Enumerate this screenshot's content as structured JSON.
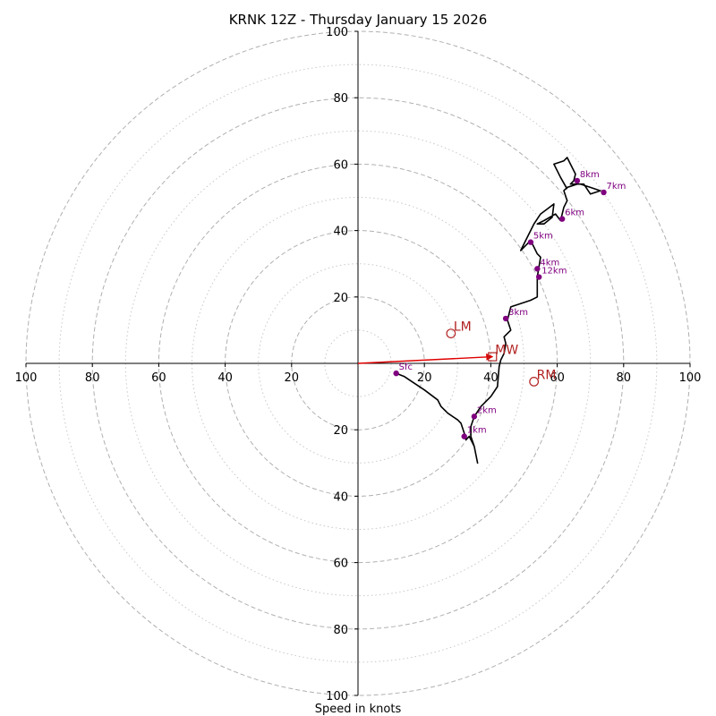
{
  "chart_data": {
    "type": "hodograph",
    "title": "KRNK 12Z - Thursday January 15 2026",
    "xlabel": "Speed in knots",
    "unit": "knots",
    "axis_range": [
      -100,
      100
    ],
    "rings_major": [
      20,
      40,
      60,
      80,
      100
    ],
    "rings_minor": [
      10,
      30,
      50,
      70,
      90
    ],
    "tick_labels_x": [
      "100",
      "80",
      "60",
      "40",
      "20",
      "20",
      "40",
      "60",
      "80",
      "100"
    ],
    "tick_values_x": [
      -100,
      -80,
      -60,
      -40,
      -20,
      20,
      40,
      60,
      80,
      100
    ],
    "tick_labels_y": [
      "100",
      "80",
      "60",
      "40",
      "20",
      "20",
      "40",
      "60",
      "80",
      "100"
    ],
    "tick_values_y": [
      100,
      80,
      60,
      40,
      20,
      -20,
      -40,
      -60,
      -80,
      -100
    ],
    "trace": [
      [
        11.5,
        -3
      ],
      [
        14,
        -4
      ],
      [
        17,
        -6
      ],
      [
        20,
        -8
      ],
      [
        24,
        -11
      ],
      [
        25,
        -13
      ],
      [
        27,
        -15
      ],
      [
        30,
        -17
      ],
      [
        31,
        -18
      ],
      [
        32,
        -21
      ],
      [
        32.5,
        -23
      ],
      [
        33.5,
        -22
      ],
      [
        35,
        -25
      ],
      [
        36,
        -30
      ],
      [
        35,
        -25
      ],
      [
        34,
        -22
      ],
      [
        34,
        -19
      ],
      [
        35,
        -16
      ],
      [
        37,
        -13
      ],
      [
        40,
        -10
      ],
      [
        42,
        -7
      ],
      [
        42.5,
        -1
      ],
      [
        43,
        1
      ],
      [
        44,
        3
      ],
      [
        44.5,
        6
      ],
      [
        44,
        8
      ],
      [
        46,
        10
      ],
      [
        45,
        13
      ],
      [
        46,
        17
      ],
      [
        52,
        19
      ],
      [
        54,
        20
      ],
      [
        54,
        26
      ],
      [
        54.5,
        29
      ],
      [
        55,
        32
      ],
      [
        54,
        33
      ],
      [
        53,
        35
      ],
      [
        52,
        37
      ],
      [
        49,
        34
      ],
      [
        51,
        38
      ],
      [
        53,
        42
      ],
      [
        55,
        45
      ],
      [
        57,
        46.5
      ],
      [
        59,
        48
      ],
      [
        58.5,
        44
      ],
      [
        56,
        42
      ],
      [
        54,
        42
      ],
      [
        56,
        43
      ],
      [
        59.5,
        45
      ],
      [
        61,
        43
      ],
      [
        62,
        47
      ],
      [
        63,
        49
      ],
      [
        62,
        52
      ],
      [
        63,
        53
      ],
      [
        66,
        54
      ],
      [
        68,
        54
      ],
      [
        70,
        51
      ],
      [
        73,
        52
      ],
      [
        70,
        53
      ],
      [
        67,
        54
      ],
      [
        64,
        54
      ],
      [
        65,
        55
      ],
      [
        65.5,
        57
      ],
      [
        64,
        60
      ],
      [
        63,
        62
      ],
      [
        62,
        61
      ],
      [
        59,
        60
      ],
      [
        61,
        56
      ],
      [
        63,
        52.5
      ]
    ],
    "height_points": [
      {
        "label": "Sfc",
        "u": 11.5,
        "v": -3
      },
      {
        "label": "1km",
        "u": 32,
        "v": -22
      },
      {
        "label": "2km",
        "u": 35,
        "v": -16
      },
      {
        "label": "3km",
        "u": 44.5,
        "v": 13.5
      },
      {
        "label": "4km",
        "u": 54,
        "v": 28.5
      },
      {
        "label": "5km",
        "u": 52,
        "v": 36.5
      },
      {
        "label": "6km",
        "u": 61.5,
        "v": 43.5
      },
      {
        "label": "7km",
        "u": 74,
        "v": 51.5
      },
      {
        "label": "8km",
        "u": 66,
        "v": 55
      },
      {
        "label": "12km",
        "u": 54.5,
        "v": 26
      }
    ],
    "motion_markers": [
      {
        "label": "LM",
        "u": 28,
        "v": 9,
        "shape": "circle"
      },
      {
        "label": "MW",
        "u": 40.5,
        "v": 2,
        "shape": "square"
      },
      {
        "label": "RM",
        "u": 53,
        "v": -5.5,
        "shape": "circle"
      }
    ],
    "mean_wind_vector": {
      "u": 40.5,
      "v": 2
    },
    "colors": {
      "trace": "#000000",
      "height_points": "#800080",
      "motion": "#b22222",
      "vector": "#e00000",
      "ring": "#b0b0b0"
    }
  }
}
